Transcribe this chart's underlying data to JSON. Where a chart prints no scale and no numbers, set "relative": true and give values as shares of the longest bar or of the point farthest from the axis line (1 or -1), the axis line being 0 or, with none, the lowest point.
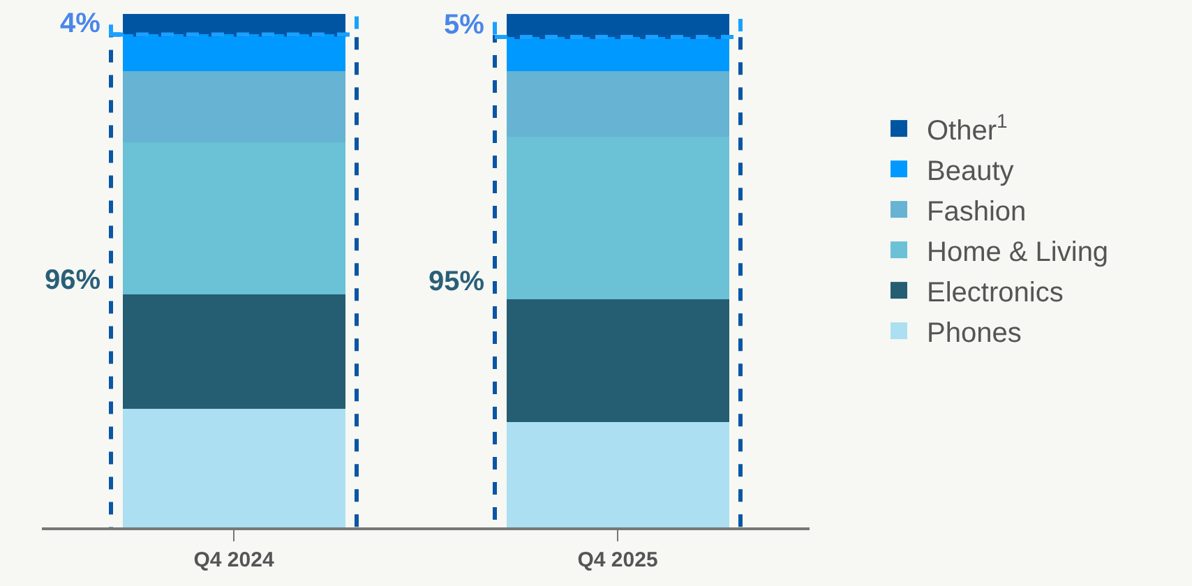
{
  "chart_data": {
    "type": "bar",
    "stacked": true,
    "relative": true,
    "legend": "right",
    "categories": [
      "Q4 2024",
      "Q4 2025"
    ],
    "series": [
      {
        "name": "Phones",
        "color": "#abdff1",
        "values": [
          0.231,
          0.205
        ]
      },
      {
        "name": "Electronics",
        "color": "#255d73",
        "values": [
          0.223,
          0.239
        ]
      },
      {
        "name": "Home & Living",
        "color": "#6bc1d6",
        "values": [
          0.296,
          0.317
        ]
      },
      {
        "name": "Fashion",
        "color": "#66b3d3",
        "values": [
          0.138,
          0.128
        ]
      },
      {
        "name": "Beauty",
        "color": "#0099ff",
        "values": [
          0.072,
          0.066
        ]
      },
      {
        "name": "Other$^{1}$",
        "color": "#0055a3",
        "values": [
          0.04,
          0.045
        ]
      }
    ],
    "annotations": [
      "4%",
      "96%",
      "5%",
      "95%"
    ]
  }
}
